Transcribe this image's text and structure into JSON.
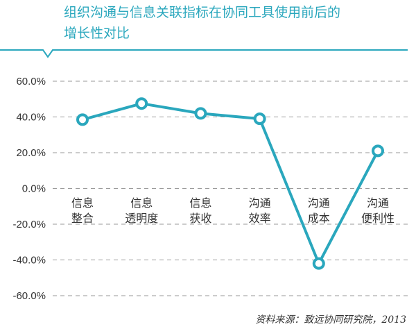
{
  "chart_data": {
    "type": "line",
    "title_lines": [
      "组织沟通与信息关联指标在协同工具使用前后的",
      "增长性对比"
    ],
    "categories": [
      [
        "信息",
        "整合"
      ],
      [
        "信息",
        "透明度"
      ],
      [
        "信息",
        "获收"
      ],
      [
        "沟通",
        "效率"
      ],
      [
        "沟通",
        "成本"
      ],
      [
        "沟通",
        "便利性"
      ]
    ],
    "values": [
      38.5,
      47.5,
      42,
      39,
      -42,
      21
    ],
    "y_ticks": [
      "60.0%",
      "40.0%",
      "20.0%",
      "0.0%",
      "-20.0%",
      "-40.0%",
      "-60.0%"
    ],
    "ylim": [
      -60,
      60
    ],
    "grid": true,
    "source": "资料来源：致远协同研究院，2013",
    "colors": {
      "accent": "#2aa7bd",
      "grid": "#9a9a9a",
      "text": "#333333"
    }
  }
}
